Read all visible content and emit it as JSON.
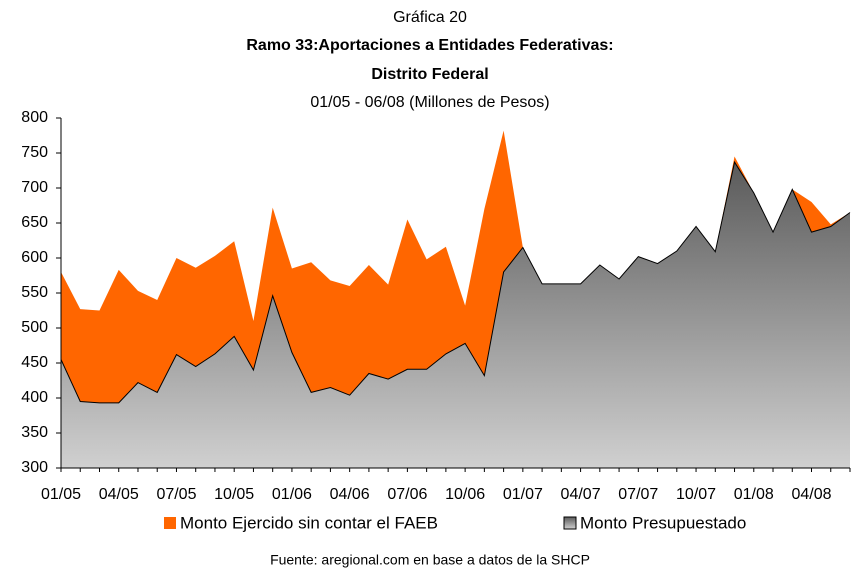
{
  "chart_data": {
    "type": "area",
    "title": "Gráfica 20",
    "heading": [
      "Ramo 33:Aportaciones a Entidades Federativas:",
      "Distrito Federal"
    ],
    "subtitle": "01/05 - 06/08 (Millones de Pesos)",
    "source": "Fuente: aregional.com en base a datos de la SHCP",
    "categories": [
      "01/05",
      null,
      null,
      "04/05",
      null,
      null,
      "07/05",
      null,
      null,
      "10/05",
      null,
      null,
      "01/06",
      null,
      null,
      "04/06",
      null,
      null,
      "07/06",
      null,
      null,
      "10/06",
      null,
      null,
      "01/07",
      null,
      null,
      "04/07",
      null,
      null,
      "07/07",
      null,
      null,
      "10/07",
      null,
      null,
      "01/08",
      null,
      null,
      "04/08",
      null,
      null
    ],
    "series": [
      {
        "name": "Monto Ejercido sin contar el FAEB",
        "color": "#ff6600",
        "values": [
          580,
          527,
          525,
          583,
          553,
          540,
          600,
          586,
          603,
          624,
          510,
          672,
          585,
          594,
          568,
          560,
          590,
          562,
          655,
          598,
          616,
          532,
          670,
          782,
          615,
          563,
          563,
          563,
          590,
          570,
          602,
          592,
          610,
          645,
          609,
          745,
          693,
          637,
          698,
          680,
          648,
          665
        ]
      },
      {
        "name": "Monto Presupuestado",
        "color": "#5a5a5a",
        "values": [
          455,
          395,
          393,
          393,
          422,
          408,
          462,
          445,
          463,
          488,
          440,
          546,
          465,
          408,
          415,
          404,
          435,
          427,
          441,
          441,
          463,
          478,
          432,
          580,
          615,
          563,
          563,
          563,
          590,
          570,
          602,
          592,
          610,
          645,
          609,
          737,
          693,
          637,
          698,
          637,
          645,
          665
        ]
      }
    ],
    "ylim": [
      300,
      800
    ],
    "yticks": [
      300,
      350,
      400,
      450,
      500,
      550,
      600,
      650,
      700,
      750,
      800
    ]
  }
}
